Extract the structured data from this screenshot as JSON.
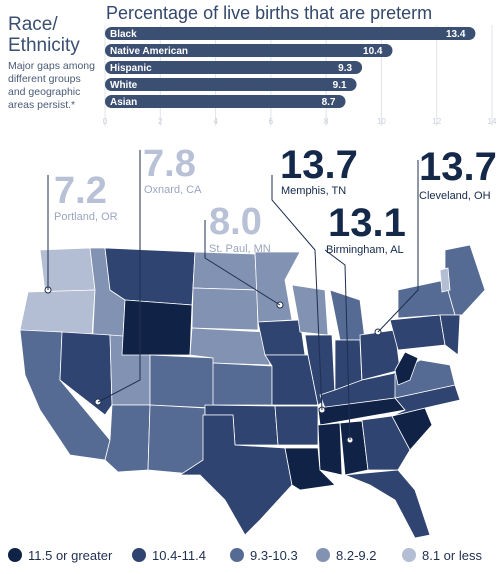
{
  "sidebar": {
    "title": "Race/ Ethnicity",
    "note": "Major gaps among different groups and geographic areas persist.*"
  },
  "chart_data": {
    "type": "bar",
    "title": "Percentage of live births that are preterm",
    "categories": [
      "Black",
      "Native American",
      "Hispanic",
      "White",
      "Asian"
    ],
    "values": [
      13.4,
      10.4,
      9.3,
      9.1,
      8.7
    ],
    "xlim": [
      0,
      14
    ],
    "xticks": [
      0,
      2,
      4,
      6,
      8,
      10,
      12,
      14
    ],
    "bar_color": "#3b4f73",
    "grid": true
  },
  "map": {
    "cities": [
      {
        "value": "7.2",
        "name": "Portland, OR",
        "color": "#b8c1d6"
      },
      {
        "value": "7.8",
        "name": "Oxnard, CA",
        "color": "#b8c1d6"
      },
      {
        "value": "8.0",
        "name": "St. Paul, MN",
        "color": "#b8c1d6"
      },
      {
        "value": "13.7",
        "name": "Memphis, TN",
        "color": "#14284a"
      },
      {
        "value": "13.1",
        "name": "Birmingham, AL",
        "color": "#14284a"
      },
      {
        "value": "13.7",
        "name": "Cleveland, OH",
        "color": "#14284a"
      }
    ],
    "state_colors": {
      "c1": "#102347",
      "c2": "#2f4470",
      "c3": "#566b93",
      "c4": "#8292b2",
      "c5": "#b3bdd3"
    }
  },
  "legend": [
    {
      "label": "11.5 or greater",
      "color": "#102347"
    },
    {
      "label": "10.4-11.4",
      "color": "#2f4470"
    },
    {
      "label": "9.3-10.3",
      "color": "#566b93"
    },
    {
      "label": "8.2-9.2",
      "color": "#8292b2"
    },
    {
      "label": "8.1 or less",
      "color": "#b3bdd3"
    }
  ]
}
